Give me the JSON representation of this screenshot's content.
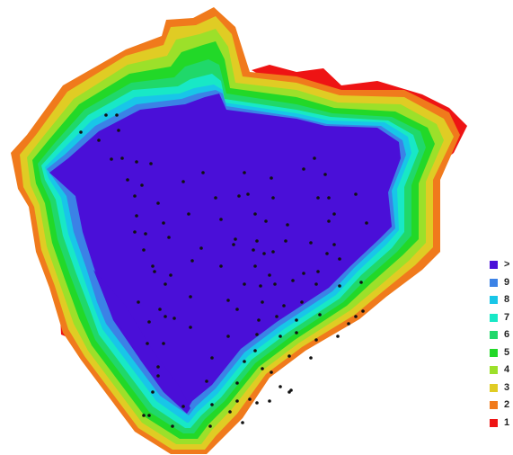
{
  "map": {
    "palette": {
      "gt": "#4a0fd8",
      "9": "#3b82e6",
      "8": "#18c6e8",
      "7": "#18e8c6",
      "6": "#20d86a",
      "5": "#22d828",
      "4": "#9ce02a",
      "3": "#e0cc24",
      "2": "#f07a1c",
      "1": "#ee1414"
    }
  },
  "legend": {
    "items": [
      {
        "label": ">",
        "color": "#4a0fd8"
      },
      {
        "label": "9",
        "color": "#3b82e6"
      },
      {
        "label": "8",
        "color": "#18c6e8"
      },
      {
        "label": "7",
        "color": "#18e8c6"
      },
      {
        "label": "6",
        "color": "#20d86a"
      },
      {
        "label": "5",
        "color": "#22d828"
      },
      {
        "label": "4",
        "color": "#9ce02a"
      },
      {
        "label": "3",
        "color": "#e0cc24"
      },
      {
        "label": "2",
        "color": "#f07a1c"
      },
      {
        "label": "1",
        "color": "#ee1414"
      }
    ]
  }
}
